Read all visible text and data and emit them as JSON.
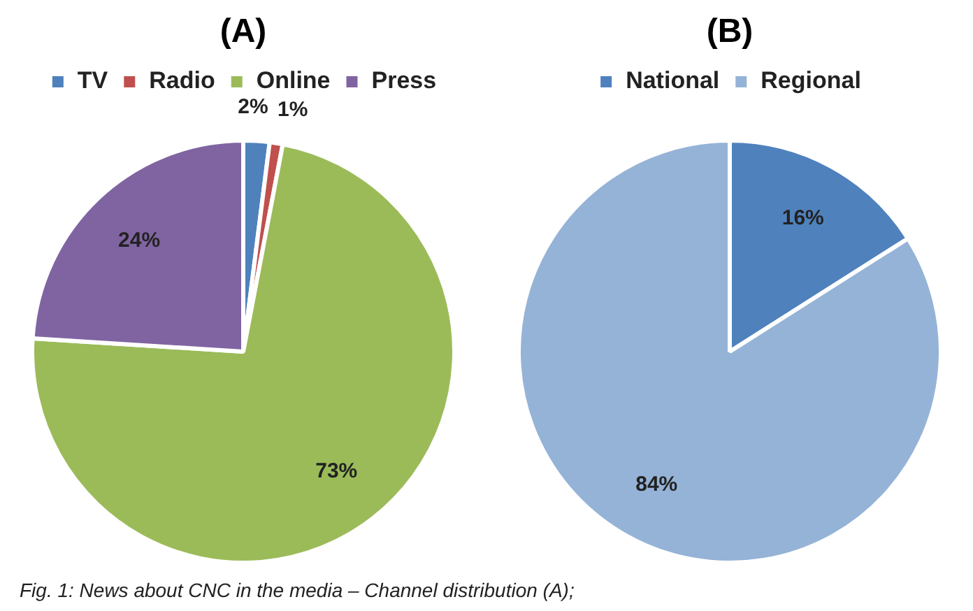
{
  "chart_data": [
    {
      "type": "pie",
      "title": "(A)",
      "categories": [
        "TV",
        "Radio",
        "Online",
        "Press"
      ],
      "values": [
        2,
        1,
        73,
        24
      ],
      "colors": [
        "#4f81bd",
        "#c0504d",
        "#9bbb59",
        "#8064a2"
      ],
      "value_labels": [
        "2%",
        "1%",
        "73%",
        "24%"
      ],
      "legend": "top",
      "annotations": [
        "Fig. 1: News about CNC in the media – Channel distribution (A);"
      ]
    },
    {
      "type": "pie",
      "title": "(B)",
      "categories": [
        "National",
        "Regional"
      ],
      "values": [
        16,
        84
      ],
      "colors": [
        "#4f81bd",
        "#95b3d7"
      ],
      "value_labels": [
        "16%",
        "84%"
      ],
      "legend": "top"
    }
  ]
}
